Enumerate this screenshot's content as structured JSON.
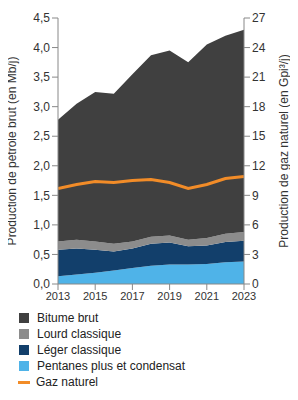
{
  "chart_data": {
    "type": "area",
    "stacked": true,
    "legend": "bottom",
    "y_label": "Production de pétrole brut (en Mb/j)",
    "y2_label": "Production de gaz naturel (en Gpi³/j)",
    "x": [
      2013,
      2014,
      2015,
      2016,
      2017,
      2018,
      2019,
      2020,
      2021,
      2022,
      2023
    ],
    "xlim": [
      2013,
      2023
    ],
    "xticks": [
      2013,
      2015,
      2017,
      2019,
      2021,
      2023
    ],
    "ylim": [
      0,
      4.5
    ],
    "yticks": [
      {
        "value": 0,
        "label": "0,0"
      },
      {
        "value": 0.5,
        "label": "0,5"
      },
      {
        "value": 1,
        "label": "1,0"
      },
      {
        "value": 1.5,
        "label": "1,5"
      },
      {
        "value": 2,
        "label": "2,0"
      },
      {
        "value": 2.5,
        "label": "2,5"
      },
      {
        "value": 3,
        "label": "3,0"
      },
      {
        "value": 3.5,
        "label": "3,5"
      },
      {
        "value": 4,
        "label": "4,0"
      },
      {
        "value": 4.5,
        "label": "4,5"
      }
    ],
    "y2lim": [
      0,
      27
    ],
    "y2ticks": [
      0,
      3,
      6,
      9,
      12,
      15,
      18,
      21,
      24,
      27
    ],
    "series": [
      {
        "name": "Bitume brut",
        "type": "area",
        "color": "#404040",
        "values": [
          2.06,
          2.3,
          2.53,
          2.54,
          2.83,
          3.07,
          3.13,
          3.0,
          3.27,
          3.35,
          3.42
        ]
      },
      {
        "name": "Lourd classique",
        "type": "area",
        "color": "#8c8c8c",
        "values": [
          0.14,
          0.15,
          0.14,
          0.13,
          0.12,
          0.12,
          0.12,
          0.11,
          0.13,
          0.14,
          0.15
        ]
      },
      {
        "name": "Léger classique",
        "type": "area",
        "color": "#123f6b",
        "values": [
          0.45,
          0.44,
          0.39,
          0.32,
          0.33,
          0.37,
          0.37,
          0.31,
          0.31,
          0.34,
          0.35
        ]
      },
      {
        "name": "Pentanes plus et condensat",
        "type": "area",
        "color": "#4fb3e8",
        "values": [
          0.13,
          0.16,
          0.19,
          0.23,
          0.27,
          0.31,
          0.33,
          0.33,
          0.34,
          0.37,
          0.38
        ]
      },
      {
        "name": "Gaz naturel",
        "type": "line",
        "axis": "y2",
        "color": "#f28c28",
        "values": [
          9.7,
          10.1,
          10.4,
          10.3,
          10.5,
          10.6,
          10.3,
          9.7,
          10.1,
          10.7,
          10.9
        ]
      }
    ]
  }
}
